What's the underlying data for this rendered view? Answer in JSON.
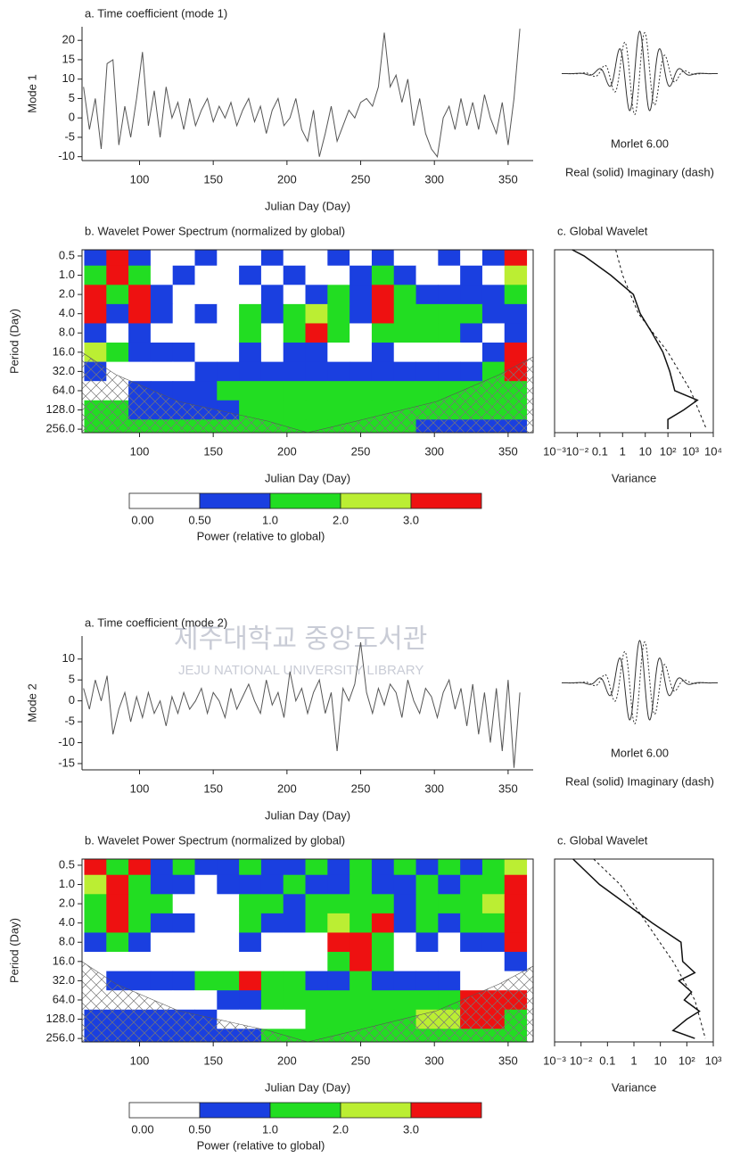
{
  "watermark": {
    "title": "제주대학교 중앙도서관",
    "subtitle": "JEJU NATIONAL UNIVERSITY LIBRARY"
  },
  "chart_data": [
    {
      "type": "line",
      "title": "a. Time coefficient (mode 1)",
      "x_label": "Julian Day (Day)",
      "y_label": "Mode 1",
      "x": [
        62,
        66,
        70,
        74,
        78,
        82,
        86,
        90,
        94,
        98,
        102,
        106,
        110,
        114,
        118,
        122,
        126,
        130,
        134,
        138,
        142,
        146,
        150,
        154,
        158,
        162,
        166,
        170,
        174,
        178,
        182,
        186,
        190,
        194,
        198,
        202,
        206,
        210,
        214,
        218,
        222,
        226,
        230,
        234,
        238,
        242,
        246,
        250,
        254,
        258,
        262,
        266,
        270,
        274,
        278,
        282,
        286,
        290,
        294,
        298,
        302,
        306,
        310,
        314,
        318,
        322,
        326,
        330,
        334,
        338,
        342,
        346,
        350,
        354,
        358
      ],
      "series": [
        {
          "color": "#555555",
          "values": [
            8,
            -3,
            5,
            -8,
            14,
            15,
            -7,
            3,
            -5,
            5,
            17,
            -2,
            7,
            -5,
            8,
            0,
            4,
            -3,
            5,
            -2,
            2,
            5,
            -1,
            3,
            0,
            4,
            -2,
            2,
            5,
            -1,
            3,
            -4,
            2,
            5,
            -2,
            0,
            5,
            -3,
            -6,
            2,
            -10,
            -4,
            3,
            -6,
            -2,
            2,
            0,
            4,
            5,
            3,
            8,
            22,
            8,
            11,
            4,
            10,
            -2,
            5,
            -4,
            -8,
            -10,
            0,
            3,
            -3,
            5,
            -2,
            4,
            -3,
            6,
            0,
            -4,
            4,
            -7,
            5,
            23
          ]
        }
      ],
      "xlim": [
        61,
        367
      ],
      "xticks": [
        100,
        150,
        200,
        250,
        300,
        350
      ],
      "ylim": [
        -11,
        23.5
      ],
      "yticks": [
        20,
        15,
        10,
        5,
        0,
        -5,
        -10
      ]
    },
    {
      "type": "wavelet",
      "title": "Morlet 6.00",
      "subtitle": "Real (solid) Imaginary (dash)"
    },
    {
      "type": "heatmap",
      "title": "b. Wavelet Power Spectrum (normalized by global)",
      "x_label": "Julian Day (Day)",
      "y_label": "Period (Day)",
      "x": [
        70,
        85,
        100,
        115,
        130,
        145,
        160,
        175,
        190,
        205,
        220,
        235,
        250,
        265,
        280,
        295,
        310,
        325,
        340,
        355
      ],
      "y": [
        0.5,
        1,
        2,
        4,
        8,
        16,
        32,
        64,
        128,
        256
      ],
      "z": [
        [
          0.7,
          3.5,
          0.7,
          0.2,
          0.2,
          0.7,
          0.2,
          0.2,
          0.7,
          0.2,
          0.2,
          0.7,
          0.2,
          0.7,
          0.2,
          0.2,
          0.7,
          0.2,
          0.7,
          3.5
        ],
        [
          1.5,
          3.5,
          1.5,
          0.2,
          0.7,
          0.2,
          0.2,
          0.7,
          0.2,
          0.7,
          0.2,
          0.2,
          0.7,
          1.5,
          0.7,
          0.2,
          0.2,
          0.7,
          0.2,
          2.5
        ],
        [
          3.5,
          1.5,
          3.5,
          0.7,
          0.2,
          0.2,
          0.2,
          0.2,
          0.7,
          0.2,
          0.7,
          1.5,
          0.7,
          3.5,
          1.5,
          0.7,
          0.7,
          0.7,
          0.7,
          1.5
        ],
        [
          3.5,
          0.7,
          3.5,
          0.7,
          0.2,
          0.7,
          0.2,
          1.5,
          0.7,
          1.5,
          2.5,
          1.5,
          0.7,
          3.5,
          1.5,
          1.5,
          1.5,
          1.5,
          0.7,
          0.7
        ],
        [
          0.7,
          0.2,
          0.7,
          0.2,
          0.2,
          0.2,
          0.2,
          1.5,
          0.2,
          1.5,
          3.5,
          1.5,
          0.2,
          1.5,
          1.5,
          1.5,
          1.5,
          0.7,
          0.2,
          0.7
        ],
        [
          2.5,
          1.5,
          0.7,
          0.7,
          0.7,
          0.2,
          0.2,
          0.7,
          0.2,
          0.7,
          0.7,
          0.2,
          0.2,
          0.7,
          0.2,
          0.2,
          0.2,
          0.2,
          0.7,
          3.5
        ],
        [
          0.7,
          0.2,
          0.2,
          0.2,
          0.2,
          0.7,
          0.7,
          0.7,
          0.7,
          0.7,
          0.7,
          0.7,
          0.7,
          0.7,
          0.7,
          0.7,
          0.7,
          0.7,
          1.5,
          3.5
        ],
        [
          0.2,
          0.2,
          0.7,
          0.7,
          0.7,
          0.7,
          1.5,
          1.5,
          1.5,
          1.5,
          1.5,
          1.5,
          1.5,
          1.5,
          1.5,
          1.5,
          1.5,
          1.5,
          1.5,
          1.5
        ],
        [
          1.5,
          1.5,
          0.7,
          0.7,
          0.7,
          0.7,
          0.7,
          1.5,
          1.5,
          1.5,
          1.5,
          1.5,
          1.5,
          1.5,
          1.5,
          1.5,
          1.5,
          1.5,
          1.5,
          1.5
        ],
        [
          1.5,
          1.5,
          1.5,
          1.5,
          1.5,
          1.5,
          1.5,
          1.5,
          1.5,
          1.5,
          1.5,
          1.5,
          1.5,
          1.5,
          1.5,
          0.7,
          0.7,
          0.7,
          0.7,
          0.7
        ]
      ],
      "xlim": [
        61,
        367
      ],
      "xticks": [
        100,
        150,
        200,
        250,
        300,
        350
      ],
      "yscale": "log",
      "yreverse": true,
      "ylim": [
        0.4,
        290
      ],
      "yticks": [
        0.5,
        {
          "value": 1,
          "label": "1.0"
        },
        {
          "value": 2,
          "label": "2.0"
        },
        {
          "value": 4,
          "label": "4.0"
        },
        {
          "value": 8,
          "label": "8.0"
        },
        {
          "value": 16,
          "label": "16.0"
        },
        {
          "value": 32,
          "label": "32.0"
        },
        {
          "value": 64,
          "label": "64.0"
        },
        {
          "value": 128,
          "label": "128.0"
        },
        {
          "value": 256,
          "label": "256.0"
        }
      ],
      "colorbar": {
        "label": "Power (relative to global)",
        "ticks": [
          {
            "value": 0,
            "label": "0.00"
          },
          {
            "value": 0.5,
            "label": "0.50"
          },
          {
            "value": 1,
            "label": "1.0"
          },
          {
            "value": 2,
            "label": "2.0"
          },
          {
            "value": 3,
            "label": "3.0"
          }
        ],
        "colors": [
          "#ffffff",
          "#1a3fe0",
          "#22dd22",
          "#bbee33",
          "#ee1111"
        ]
      }
    },
    {
      "type": "line",
      "title": "c. Global Wavelet",
      "x_label": "Variance",
      "xscale": "log",
      "yscale": "log",
      "yreverse": true,
      "xlim": [
        0.001,
        10000
      ],
      "ylim": [
        0.4,
        290
      ],
      "xticks": [
        {
          "value": 0.001,
          "label": "10⁻³"
        },
        {
          "value": 0.01,
          "label": "10⁻²"
        },
        0.1,
        1,
        10,
        {
          "value": 100,
          "label": "10²"
        },
        {
          "value": 1000,
          "label": "10³"
        },
        {
          "value": 10000,
          "label": "10⁴"
        }
      ],
      "series": [
        {
          "color": "#111111",
          "dash": false,
          "x": [
            0.006,
            0.02,
            0.3,
            3,
            6,
            20,
            60,
            120,
            200,
            2000,
            500,
            100,
            100
          ],
          "values": [
            0.4,
            0.5,
            1,
            2,
            4,
            8,
            16,
            32,
            64,
            90,
            128,
            180,
            256
          ]
        },
        {
          "color": "#111111",
          "dash": true,
          "x": [
            0.5,
            1,
            5,
            100,
            1000,
            5000
          ],
          "values": [
            0.4,
            1,
            4,
            16,
            64,
            256
          ]
        }
      ]
    },
    {
      "type": "line",
      "title": "a. Time coefficient (mode 2)",
      "x_label": "Julian Day (Day)",
      "y_label": "Mode 2",
      "x": [
        62,
        66,
        70,
        74,
        78,
        82,
        86,
        90,
        94,
        98,
        102,
        106,
        110,
        114,
        118,
        122,
        126,
        130,
        134,
        138,
        142,
        146,
        150,
        154,
        158,
        162,
        166,
        170,
        174,
        178,
        182,
        186,
        190,
        194,
        198,
        202,
        206,
        210,
        214,
        218,
        222,
        226,
        230,
        234,
        238,
        242,
        246,
        250,
        254,
        258,
        262,
        266,
        270,
        274,
        278,
        282,
        286,
        290,
        294,
        298,
        302,
        306,
        310,
        314,
        318,
        322,
        326,
        330,
        334,
        338,
        342,
        346,
        350,
        354,
        358
      ],
      "series": [
        {
          "color": "#555555",
          "values": [
            3,
            -2,
            5,
            0,
            6,
            -8,
            -2,
            2,
            -5,
            1,
            -4,
            2,
            -3,
            0,
            -6,
            1,
            -3,
            2,
            -2,
            0,
            3,
            -3,
            2,
            0,
            -4,
            3,
            -2,
            1,
            4,
            0,
            -3,
            5,
            -1,
            2,
            -4,
            7,
            0,
            3,
            -3,
            2,
            5,
            -3,
            2,
            -12,
            3,
            0,
            4,
            14,
            2,
            -3,
            3,
            -1,
            4,
            2,
            -4,
            5,
            0,
            -3,
            3,
            1,
            -4,
            2,
            5,
            -2,
            3,
            -6,
            4,
            -8,
            2,
            -10,
            3,
            -12,
            5,
            -16,
            2
          ]
        }
      ],
      "xlim": [
        61,
        367
      ],
      "xticks": [
        100,
        150,
        200,
        250,
        300,
        350
      ],
      "ylim": [
        -16.5,
        15.5
      ],
      "yticks": [
        10,
        5,
        0,
        -5,
        -10,
        -15
      ]
    },
    {
      "type": "wavelet",
      "title": "Morlet 6.00",
      "subtitle": "Real (solid) Imaginary (dash)"
    },
    {
      "type": "heatmap",
      "title": "b. Wavelet Power Spectrum (normalized by global)",
      "x_label": "Julian Day (Day)",
      "y_label": "Period (Day)",
      "x": [
        70,
        85,
        100,
        115,
        130,
        145,
        160,
        175,
        190,
        205,
        220,
        235,
        250,
        265,
        280,
        295,
        310,
        325,
        340,
        355
      ],
      "y": [
        0.5,
        1,
        2,
        4,
        8,
        16,
        32,
        64,
        128,
        256
      ],
      "z": [
        [
          3.5,
          1.5,
          3.5,
          0.7,
          1.5,
          0.7,
          0.7,
          1.5,
          0.7,
          0.7,
          1.5,
          0.7,
          1.5,
          0.7,
          1.5,
          0.7,
          1.5,
          0.7,
          1.5,
          2.5
        ],
        [
          2.5,
          3.5,
          1.5,
          0.7,
          0.7,
          0.2,
          0.7,
          0.7,
          0.7,
          1.5,
          0.7,
          0.7,
          1.5,
          0.7,
          0.7,
          1.5,
          0.7,
          1.5,
          1.5,
          3.5
        ],
        [
          1.5,
          3.5,
          1.5,
          1.5,
          0.2,
          0.2,
          0.2,
          1.5,
          1.5,
          0.7,
          1.5,
          1.5,
          1.5,
          1.5,
          0.7,
          1.5,
          1.5,
          1.5,
          2.5,
          3.5
        ],
        [
          1.5,
          3.5,
          1.5,
          0.7,
          0.7,
          0.2,
          0.2,
          1.5,
          0.7,
          0.7,
          1.5,
          2.5,
          1.5,
          3.5,
          0.7,
          1.5,
          0.7,
          1.5,
          1.5,
          3.5
        ],
        [
          0.7,
          1.5,
          0.7,
          0.2,
          0.2,
          0.2,
          0.2,
          0.7,
          0.2,
          0.2,
          0.2,
          3.5,
          3.5,
          1.5,
          0.2,
          0.7,
          0.2,
          0.7,
          0.7,
          3.5
        ],
        [
          0.2,
          0.2,
          0.2,
          0.2,
          0.2,
          0.2,
          0.2,
          0.2,
          0.2,
          0.2,
          0.2,
          1.5,
          3.5,
          1.5,
          0.2,
          0.2,
          0.2,
          0.2,
          0.2,
          0.7
        ],
        [
          0.2,
          0.7,
          0.7,
          0.7,
          0.7,
          1.5,
          1.5,
          3.5,
          1.5,
          1.5,
          0.7,
          0.7,
          1.5,
          0.7,
          0.7,
          0.7,
          0.7,
          0.2,
          0.2,
          0.2
        ],
        [
          0.2,
          0.2,
          0.2,
          0.2,
          0.2,
          0.2,
          0.7,
          0.7,
          1.5,
          1.5,
          1.5,
          1.5,
          1.5,
          1.5,
          1.5,
          1.5,
          1.5,
          3.5,
          3.5,
          3.5
        ],
        [
          0.7,
          0.7,
          0.7,
          0.7,
          0.7,
          0.7,
          0.2,
          0.2,
          0.2,
          0.2,
          1.5,
          1.5,
          1.5,
          1.5,
          1.5,
          2.5,
          2.5,
          3.5,
          3.5,
          1.5
        ],
        [
          0.7,
          0.7,
          0.7,
          0.7,
          0.7,
          0.7,
          0.7,
          0.7,
          1.5,
          1.5,
          1.5,
          1.5,
          1.5,
          1.5,
          1.5,
          1.5,
          1.5,
          1.5,
          1.5,
          1.5
        ]
      ],
      "xlim": [
        61,
        367
      ],
      "xticks": [
        100,
        150,
        200,
        250,
        300,
        350
      ],
      "yscale": "log",
      "yreverse": true,
      "ylim": [
        0.4,
        290
      ],
      "yticks": [
        0.5,
        {
          "value": 1,
          "label": "1.0"
        },
        {
          "value": 2,
          "label": "2.0"
        },
        {
          "value": 4,
          "label": "4.0"
        },
        {
          "value": 8,
          "label": "8.0"
        },
        {
          "value": 16,
          "label": "16.0"
        },
        {
          "value": 32,
          "label": "32.0"
        },
        {
          "value": 64,
          "label": "64.0"
        },
        {
          "value": 128,
          "label": "128.0"
        },
        {
          "value": 256,
          "label": "256.0"
        }
      ],
      "colorbar": {
        "label": "Power (relative to global)",
        "ticks": [
          {
            "value": 0,
            "label": "0.00"
          },
          {
            "value": 0.5,
            "label": "0.50"
          },
          {
            "value": 1,
            "label": "1.0"
          },
          {
            "value": 2,
            "label": "2.0"
          },
          {
            "value": 3,
            "label": "3.0"
          }
        ],
        "colors": [
          "#ffffff",
          "#1a3fe0",
          "#22dd22",
          "#bbee33",
          "#ee1111"
        ]
      }
    },
    {
      "type": "line",
      "title": "c. Global Wavelet",
      "x_label": "Variance",
      "xscale": "log",
      "yscale": "log",
      "yreverse": true,
      "xlim": [
        0.001,
        1000
      ],
      "ylim": [
        0.4,
        290
      ],
      "xticks": [
        {
          "value": 0.001,
          "label": "10⁻³"
        },
        {
          "value": 0.01,
          "label": "10⁻²"
        },
        0.1,
        1,
        10,
        {
          "value": 100,
          "label": "10²"
        },
        {
          "value": 1000,
          "label": "10³"
        }
      ],
      "series": [
        {
          "color": "#111111",
          "dash": false,
          "x": [
            0.005,
            0.05,
            0.5,
            5,
            60,
            70,
            200,
            50,
            150,
            80,
            300,
            100,
            30,
            200
          ],
          "values": [
            0.4,
            1,
            2,
            4,
            8,
            16,
            24,
            32,
            48,
            64,
            96,
            128,
            192,
            256
          ]
        },
        {
          "color": "#111111",
          "dash": true,
          "x": [
            0.03,
            0.3,
            3,
            30,
            200,
            500
          ],
          "values": [
            0.4,
            1,
            4,
            16,
            64,
            256
          ]
        }
      ]
    }
  ]
}
